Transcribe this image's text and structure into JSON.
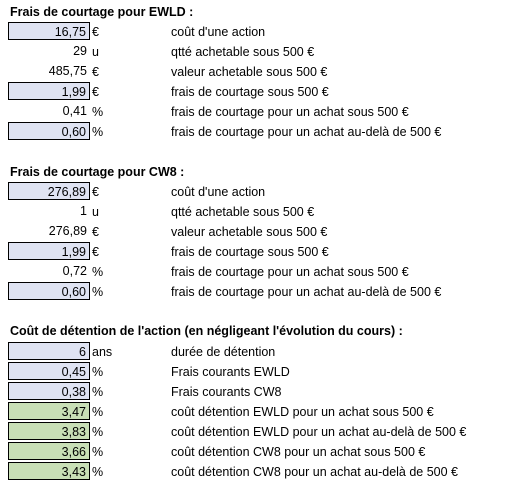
{
  "sections": [
    {
      "title": "Frais de courtage pour EWLD :",
      "rows": [
        {
          "value": "16,75",
          "unit": "€",
          "desc": "coût d'une action",
          "style": "input"
        },
        {
          "value": "29",
          "unit": "u",
          "desc": "qtté achetable sous 500 €",
          "style": "plain"
        },
        {
          "value": "485,75",
          "unit": "€",
          "desc": "valeur achetable sous 500 €",
          "style": "plain"
        },
        {
          "value": "1,99",
          "unit": "€",
          "desc": "frais de courtage sous 500 €",
          "style": "input"
        },
        {
          "value": "0,41",
          "unit": "%",
          "desc": "frais de courtage pour un achat sous 500 €",
          "style": "plain"
        },
        {
          "value": "0,60",
          "unit": "%",
          "desc": "frais de courtage pour un achat au-delà de 500 €",
          "style": "input"
        }
      ]
    },
    {
      "title": "Frais de courtage pour CW8 :",
      "rows": [
        {
          "value": "276,89",
          "unit": "€",
          "desc": "coût d'une action",
          "style": "input"
        },
        {
          "value": "1",
          "unit": "u",
          "desc": "qtté achetable sous 500 €",
          "style": "plain"
        },
        {
          "value": "276,89",
          "unit": "€",
          "desc": "valeur achetable sous 500 €",
          "style": "plain"
        },
        {
          "value": "1,99",
          "unit": "€",
          "desc": "frais de courtage sous 500 €",
          "style": "input"
        },
        {
          "value": "0,72",
          "unit": "%",
          "desc": "frais de courtage pour un achat sous 500 €",
          "style": "plain"
        },
        {
          "value": "0,60",
          "unit": "%",
          "desc": "frais de courtage pour un achat au-delà de 500 €",
          "style": "input"
        }
      ]
    },
    {
      "title": "Coût de détention de l'action (en négligeant l'évolution du cours) :",
      "rows": [
        {
          "value": "6",
          "unit": "ans",
          "desc": "durée de détention",
          "style": "input"
        },
        {
          "value": "0,45",
          "unit": "%",
          "desc": "Frais courants EWLD",
          "style": "input"
        },
        {
          "value": "0,38",
          "unit": "%",
          "desc": "Frais courants CW8",
          "style": "input"
        },
        {
          "value": "3,47",
          "unit": "%",
          "desc": "coût détention EWLD pour un achat sous 500 €",
          "style": "result"
        },
        {
          "value": "3,83",
          "unit": "%",
          "desc": "coût détention EWLD pour un achat au-delà de 500 €",
          "style": "result"
        },
        {
          "value": "3,66",
          "unit": "%",
          "desc": "coût détention CW8 pour un achat sous 500 €",
          "style": "result"
        },
        {
          "value": "3,43",
          "unit": "%",
          "desc": "coût détention CW8 pour un achat au-delà de 500 €",
          "style": "result"
        }
      ]
    }
  ],
  "colors": {
    "input_fill": "#dfe3f2",
    "result_fill": "#c8dfb6",
    "border": "#000000"
  }
}
